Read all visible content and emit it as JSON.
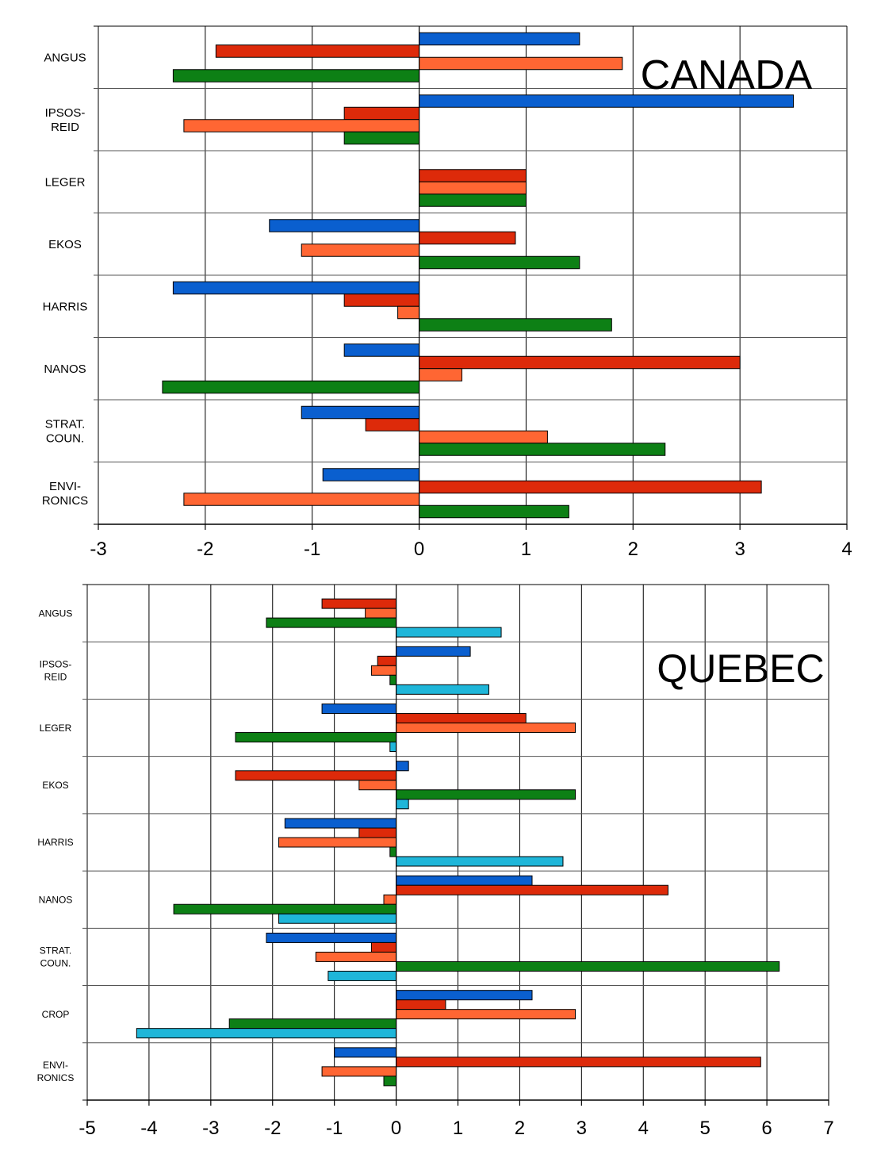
{
  "colors": {
    "series_a": "#0a5fcf",
    "series_b": "#dd2a0a",
    "series_c": "#ff6633",
    "series_d": "#0d8015",
    "series_e": "#1fb6d9"
  },
  "chart_data": [
    {
      "type": "bar",
      "orientation": "horizontal",
      "title": "CANADA",
      "xlabel": "",
      "ylabel": "",
      "xlim": [
        -3,
        4
      ],
      "xticks": [
        -3,
        -2,
        -1,
        0,
        1,
        2,
        3,
        4
      ],
      "grid": true,
      "legend": "none",
      "categories": [
        "ANGUS",
        "IPSOS-\nREID",
        "LEGER",
        "EKOS",
        "HARRIS",
        "NANOS",
        "STRAT.\nCOUN.",
        "ENVI-\nRONICS"
      ],
      "series": [
        {
          "color": "#0a5fcf",
          "values": [
            1.5,
            3.5,
            0,
            -1.4,
            -2.3,
            -0.7,
            -1.1,
            -0.9
          ]
        },
        {
          "color": "#dd2a0a",
          "values": [
            -1.9,
            -0.7,
            1.0,
            0.9,
            -0.7,
            3.0,
            -0.5,
            3.2
          ]
        },
        {
          "color": "#ff6633",
          "values": [
            1.9,
            -2.2,
            1.0,
            -1.1,
            -0.2,
            0.4,
            1.2,
            -2.2
          ]
        },
        {
          "color": "#0d8015",
          "values": [
            -2.3,
            -0.7,
            1.0,
            1.5,
            1.8,
            -2.4,
            2.3,
            1.4
          ]
        }
      ]
    },
    {
      "type": "bar",
      "orientation": "horizontal",
      "title": "QUEBEC",
      "xlabel": "",
      "ylabel": "",
      "xlim": [
        -5,
        7
      ],
      "xticks": [
        -5,
        -4,
        -3,
        -2,
        -1,
        0,
        1,
        2,
        3,
        4,
        5,
        6,
        7
      ],
      "grid": true,
      "legend": "none",
      "categories": [
        "ANGUS",
        "IPSOS-\nREID",
        "LEGER",
        "EKOS",
        "HARRIS",
        "NANOS",
        "STRAT.\nCOUN.",
        "CROP",
        "ENVI-\nRONICS"
      ],
      "series": [
        {
          "color": "#0a5fcf",
          "values": [
            0,
            1.2,
            -1.2,
            0.2,
            -1.8,
            2.2,
            -2.1,
            2.2,
            -1.0
          ]
        },
        {
          "color": "#dd2a0a",
          "values": [
            -1.2,
            -0.3,
            2.1,
            -2.6,
            -0.6,
            4.4,
            -0.4,
            0.8,
            5.9
          ]
        },
        {
          "color": "#ff6633",
          "values": [
            -0.5,
            -0.4,
            2.9,
            -0.6,
            -1.9,
            -0.2,
            -1.3,
            2.9,
            -1.2
          ]
        },
        {
          "color": "#0d8015",
          "values": [
            -2.1,
            -0.1,
            -2.6,
            2.9,
            -0.1,
            -3.6,
            6.2,
            -2.7,
            -0.2
          ]
        },
        {
          "color": "#1fb6d9",
          "values": [
            1.7,
            1.5,
            -0.1,
            0.2,
            2.7,
            -1.9,
            -1.1,
            -4.2,
            0
          ]
        }
      ]
    }
  ]
}
